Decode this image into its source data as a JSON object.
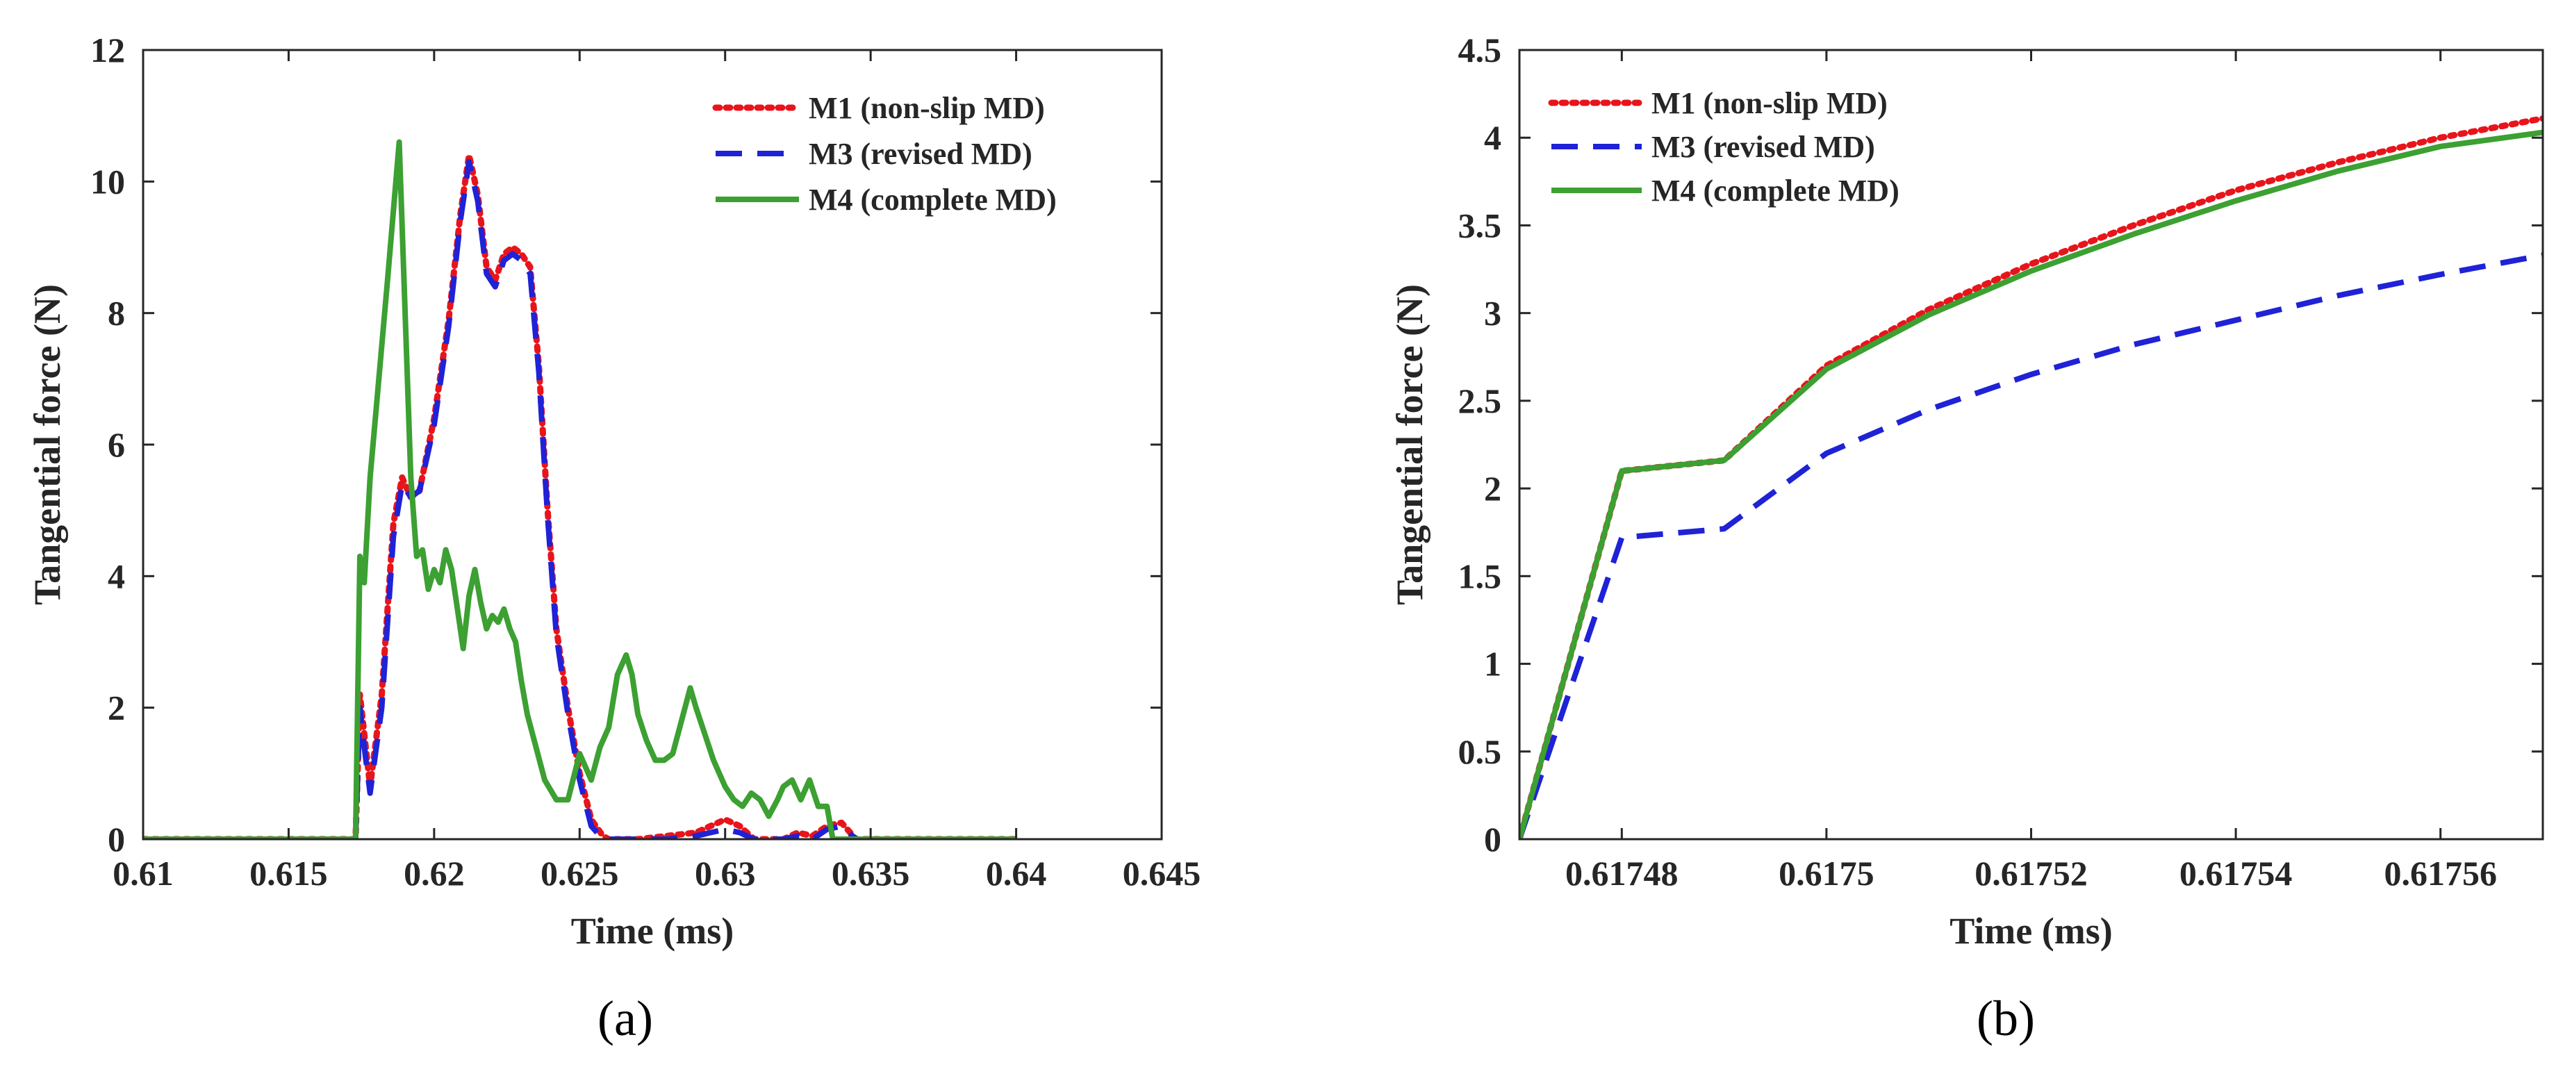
{
  "chart_data": [
    {
      "id": "a",
      "type": "line",
      "caption": "(a)",
      "xlabel": "Time (ms)",
      "ylabel": "Tangential force (N)",
      "xlim": [
        0.61,
        0.645
      ],
      "ylim": [
        0,
        12
      ],
      "xticks": [
        0.61,
        0.615,
        0.62,
        0.625,
        0.63,
        0.635,
        0.64,
        0.645
      ],
      "xtick_labels": [
        "0.61",
        "0.615",
        "0.62",
        "0.625",
        "0.63",
        "0.635",
        "0.64",
        "0.645"
      ],
      "yticks": [
        0,
        2,
        4,
        6,
        8,
        10,
        12
      ],
      "ytick_labels": [
        "0",
        "2",
        "4",
        "6",
        "8",
        "10",
        "12"
      ],
      "grid": false,
      "legend_position": "top-right",
      "series": [
        {
          "name": "M1 (non-slip MD)",
          "color": "#e8141b",
          "style": "dotted",
          "x": [
            0.61,
            0.6173,
            0.61745,
            0.6176,
            0.6178,
            0.6182,
            0.6186,
            0.6189,
            0.6192,
            0.6195,
            0.62,
            0.6205,
            0.6209,
            0.6212,
            0.6215,
            0.6218,
            0.6221,
            0.6224,
            0.6227,
            0.623,
            0.6233,
            0.6236,
            0.6239,
            0.6242,
            0.6246,
            0.625,
            0.6254,
            0.6258,
            0.626,
            0.6265,
            0.627,
            0.628,
            0.629,
            0.63,
            0.6305,
            0.631,
            0.632,
            0.6325,
            0.633,
            0.6335,
            0.634,
            0.6345,
            0.64
          ],
          "y": [
            0,
            0,
            2.2,
            1.6,
            0.8,
            2.2,
            4.8,
            5.5,
            5.2,
            5.3,
            6.4,
            7.9,
            9.5,
            10.4,
            9.8,
            8.7,
            8.5,
            8.9,
            9.0,
            8.9,
            8.7,
            7.2,
            5.0,
            3.2,
            2.0,
            1.0,
            0.3,
            0.05,
            0.0,
            0.0,
            0.0,
            0.05,
            0.1,
            0.3,
            0.2,
            0.0,
            0.0,
            0.1,
            0.05,
            0.2,
            0.25,
            0.0,
            0
          ]
        },
        {
          "name": "M3 (revised MD)",
          "color": "#1f22d6",
          "style": "dashed",
          "x": [
            0.61,
            0.6173,
            0.61745,
            0.6176,
            0.6178,
            0.6182,
            0.6186,
            0.6189,
            0.6192,
            0.6195,
            0.62,
            0.6205,
            0.6209,
            0.6212,
            0.6215,
            0.6218,
            0.6221,
            0.6224,
            0.6227,
            0.623,
            0.6233,
            0.6236,
            0.6239,
            0.6242,
            0.6246,
            0.625,
            0.6254,
            0.6258,
            0.626,
            0.6265,
            0.627,
            0.628,
            0.629,
            0.63,
            0.6305,
            0.631,
            0.632,
            0.6325,
            0.633,
            0.6335,
            0.634,
            0.6345,
            0.64
          ],
          "y": [
            0,
            0,
            2.0,
            1.4,
            0.7,
            2.0,
            4.6,
            5.4,
            5.2,
            5.3,
            6.3,
            7.8,
            9.4,
            10.3,
            9.7,
            8.6,
            8.4,
            8.8,
            8.9,
            8.8,
            8.6,
            7.1,
            4.9,
            3.1,
            1.9,
            0.9,
            0.2,
            0.0,
            0.0,
            0.0,
            0.0,
            0.0,
            0.05,
            0.15,
            0.1,
            0.0,
            0.0,
            0.05,
            0.0,
            0.15,
            0.2,
            0.0,
            0
          ]
        },
        {
          "name": "M4 (complete MD)",
          "color": "#3ca032",
          "style": "solid",
          "x": [
            0.61,
            0.6173,
            0.61745,
            0.6176,
            0.6178,
            0.618,
            0.6184,
            0.6188,
            0.6192,
            0.6194,
            0.6196,
            0.6198,
            0.62,
            0.6202,
            0.6204,
            0.6206,
            0.6208,
            0.621,
            0.6212,
            0.6214,
            0.6216,
            0.6218,
            0.622,
            0.6222,
            0.6224,
            0.6226,
            0.6228,
            0.623,
            0.6232,
            0.6235,
            0.6238,
            0.6242,
            0.6246,
            0.625,
            0.6254,
            0.6257,
            0.626,
            0.6263,
            0.6266,
            0.6268,
            0.627,
            0.6273,
            0.6276,
            0.6279,
            0.6282,
            0.6285,
            0.6288,
            0.629,
            0.6293,
            0.6296,
            0.63,
            0.6303,
            0.6306,
            0.6309,
            0.6312,
            0.6315,
            0.6318,
            0.632,
            0.6323,
            0.6326,
            0.6329,
            0.6332,
            0.6335,
            0.6337,
            0.634,
            0.6342,
            0.6345,
            0.64
          ],
          "y": [
            0,
            0,
            4.3,
            3.9,
            5.5,
            6.5,
            8.5,
            10.6,
            5.5,
            4.3,
            4.4,
            3.8,
            4.1,
            3.9,
            4.4,
            4.1,
            3.5,
            2.9,
            3.7,
            4.1,
            3.6,
            3.2,
            3.4,
            3.3,
            3.5,
            3.2,
            3.0,
            2.4,
            1.9,
            1.4,
            0.9,
            0.6,
            0.6,
            1.3,
            0.9,
            1.4,
            1.7,
            2.5,
            2.8,
            2.5,
            1.9,
            1.5,
            1.2,
            1.2,
            1.3,
            1.8,
            2.3,
            2.0,
            1.6,
            1.2,
            0.8,
            0.6,
            0.5,
            0.7,
            0.6,
            0.35,
            0.6,
            0.8,
            0.9,
            0.6,
            0.9,
            0.5,
            0.5,
            0.0,
            0.0,
            0.0,
            0.0,
            0
          ]
        }
      ]
    },
    {
      "id": "b",
      "type": "line",
      "caption": "(b)",
      "xlabel": "Time (ms)",
      "ylabel": "Tangential force (N)",
      "xlim": [
        0.61747,
        0.61757
      ],
      "ylim": [
        0,
        4.5
      ],
      "xticks": [
        0.61748,
        0.6175,
        0.61752,
        0.61754,
        0.61756
      ],
      "xtick_labels": [
        "0.61748",
        "0.6175",
        "0.61752",
        "0.61754",
        "0.61756"
      ],
      "yticks": [
        0,
        0.5,
        1,
        1.5,
        2,
        2.5,
        3,
        3.5,
        4,
        4.5
      ],
      "ytick_labels": [
        "0",
        "0.5",
        "1",
        "1.5",
        "2",
        "2.5",
        "3",
        "3.5",
        "4",
        "4.5"
      ],
      "grid": false,
      "legend_position": "top-left",
      "series": [
        {
          "name": "M1 (non-slip MD)",
          "color": "#e8141b",
          "style": "dotted",
          "x": [
            0.61747,
            0.61748,
            0.61749,
            0.6175,
            0.61751,
            0.61752,
            0.61753,
            0.61754,
            0.61755,
            0.61756,
            0.61757
          ],
          "y": [
            0,
            2.1,
            2.16,
            2.7,
            3.02,
            3.28,
            3.5,
            3.7,
            3.86,
            4.0,
            4.11
          ]
        },
        {
          "name": "M3 (revised MD)",
          "color": "#1f22d6",
          "style": "dashed",
          "x": [
            0.61747,
            0.61748,
            0.61749,
            0.6175,
            0.61751,
            0.61752,
            0.61753,
            0.61754,
            0.61755,
            0.61756,
            0.61757
          ],
          "y": [
            0,
            1.72,
            1.77,
            2.2,
            2.45,
            2.65,
            2.82,
            2.96,
            3.1,
            3.22,
            3.33
          ]
        },
        {
          "name": "M4 (complete MD)",
          "color": "#3ca032",
          "style": "solid",
          "x": [
            0.61747,
            0.61748,
            0.61749,
            0.6175,
            0.61751,
            0.61752,
            0.61753,
            0.61754,
            0.61755,
            0.61756,
            0.61757
          ],
          "y": [
            0,
            2.1,
            2.16,
            2.68,
            2.99,
            3.24,
            3.45,
            3.64,
            3.81,
            3.95,
            4.03
          ]
        }
      ]
    }
  ]
}
